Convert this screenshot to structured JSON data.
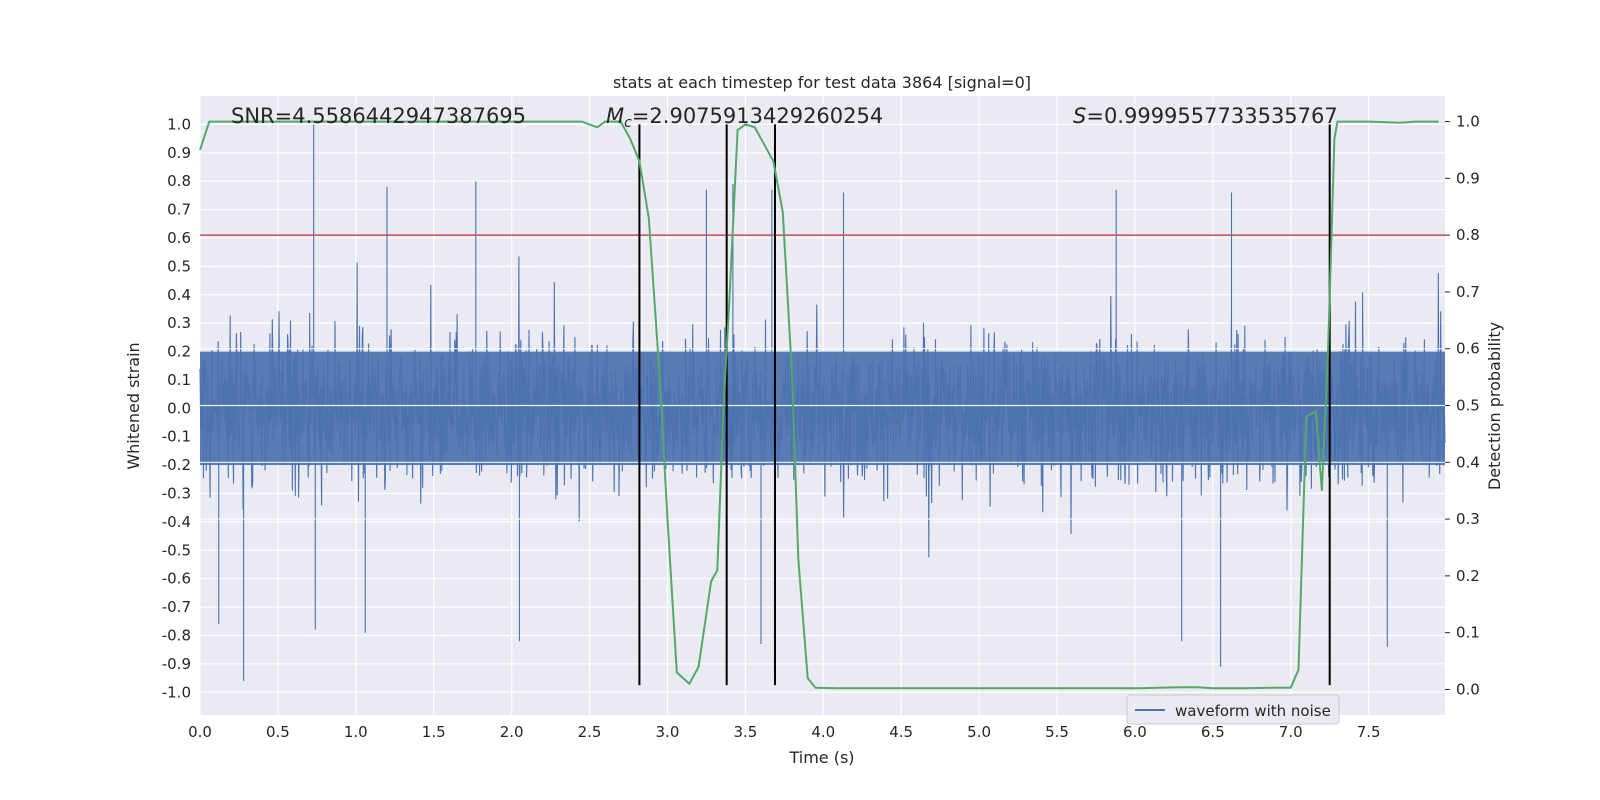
{
  "chart_data": {
    "type": "line",
    "title": "stats at each timestep for test data 3864 [signal=0]",
    "xlabel": "Time (s)",
    "ylabel": "Whitened strain",
    "y2label": "Detection probability",
    "xlim": [
      0.0,
      7.99
    ],
    "ylim": [
      -1.08,
      1.1
    ],
    "y2lim": [
      -0.045,
      1.045
    ],
    "x_ticks": [
      "0.0",
      "0.5",
      "1.0",
      "1.5",
      "2.0",
      "2.5",
      "3.0",
      "3.5",
      "4.0",
      "4.5",
      "5.0",
      "5.5",
      "6.0",
      "6.5",
      "7.0",
      "7.5"
    ],
    "y_ticks": [
      "-1.0",
      "-0.9",
      "-0.8",
      "-0.7",
      "-0.6",
      "-0.5",
      "-0.4",
      "-0.3",
      "-0.2",
      "-0.1",
      "0.0",
      "0.1",
      "0.2",
      "0.3",
      "0.4",
      "0.5",
      "0.6",
      "0.7",
      "0.8",
      "0.9",
      "1.0"
    ],
    "y2_ticks": [
      "0.0",
      "0.1",
      "0.2",
      "0.3",
      "0.4",
      "0.5",
      "0.6",
      "0.7",
      "0.8",
      "0.9",
      "1.0"
    ],
    "grid": true,
    "legend": {
      "position": "bottom-right",
      "entries": [
        "waveform with noise"
      ]
    },
    "annotations": {
      "snr": "SNR=4.5586442947387695",
      "mc": "=2.9075913429260254",
      "mc_symbol": "M",
      "mc_sub": "c",
      "s": "=0.9999557733535767",
      "s_symbol": "S"
    },
    "series": [
      {
        "name": "waveform with noise",
        "color": "#4c72b0",
        "envelope": "noise, dense band within about ±0.4, peak 1.0 at t≈0.73, minimum about -0.96 at t≈0.28",
        "peaks": [
          [
            0.28,
            -0.96
          ],
          [
            0.73,
            1.0
          ],
          [
            0.12,
            -0.76
          ],
          [
            0.74,
            -0.78
          ],
          [
            1.06,
            -0.79
          ],
          [
            1.2,
            0.78
          ],
          [
            1.77,
            0.8
          ],
          [
            2.05,
            -0.82
          ],
          [
            3.25,
            0.77
          ],
          [
            3.42,
            0.79
          ],
          [
            3.6,
            -0.83
          ],
          [
            3.67,
            0.77
          ],
          [
            6.3,
            -0.82
          ],
          [
            6.55,
            -0.91
          ],
          [
            7.62,
            -0.84
          ],
          [
            4.13,
            0.76
          ],
          [
            5.88,
            0.77
          ],
          [
            6.62,
            0.76
          ]
        ]
      },
      {
        "color": "#55a868",
        "axis": "y2",
        "x": [
          0.0,
          0.06,
          0.2,
          0.5,
          1.0,
          1.5,
          2.0,
          2.3,
          2.45,
          2.5,
          2.55,
          2.6,
          2.65,
          2.7,
          2.76,
          2.82,
          2.88,
          2.95,
          3.0,
          3.06,
          3.14,
          3.2,
          3.28,
          3.32,
          3.36,
          3.4,
          3.45,
          3.5,
          3.56,
          3.62,
          3.68,
          3.74,
          3.8,
          3.84,
          3.9,
          3.95,
          4.1,
          4.5,
          5.0,
          5.5,
          6.0,
          6.15,
          6.3,
          6.4,
          6.5,
          6.7,
          6.9,
          7.0,
          7.05,
          7.1,
          7.16,
          7.2,
          7.24,
          7.28,
          7.3,
          7.36,
          7.42,
          7.5,
          7.7,
          7.8,
          7.95
        ],
        "values": [
          0.95,
          1.0,
          1.0,
          1.0,
          1.0,
          1.0,
          1.0,
          1.0,
          1.0,
          0.995,
          0.99,
          1.0,
          1.0,
          1.0,
          0.97,
          0.93,
          0.83,
          0.55,
          0.3,
          0.03,
          0.01,
          0.04,
          0.19,
          0.21,
          0.5,
          0.7,
          0.985,
          0.995,
          0.99,
          0.96,
          0.93,
          0.84,
          0.55,
          0.23,
          0.02,
          0.003,
          0.002,
          0.002,
          0.002,
          0.002,
          0.002,
          0.003,
          0.004,
          0.004,
          0.002,
          0.002,
          0.003,
          0.003,
          0.035,
          0.48,
          0.49,
          0.35,
          0.6,
          0.97,
          1.0,
          1.0,
          1.0,
          1.0,
          0.998,
          1.0,
          1.0
        ]
      }
    ],
    "threshold_line": {
      "y": 0.8,
      "color": "#c44e52"
    },
    "vertical_lines": [
      2.82,
      3.38,
      3.69,
      7.25
    ],
    "vertical_line_range": [
      -0.975,
      1.0
    ]
  }
}
